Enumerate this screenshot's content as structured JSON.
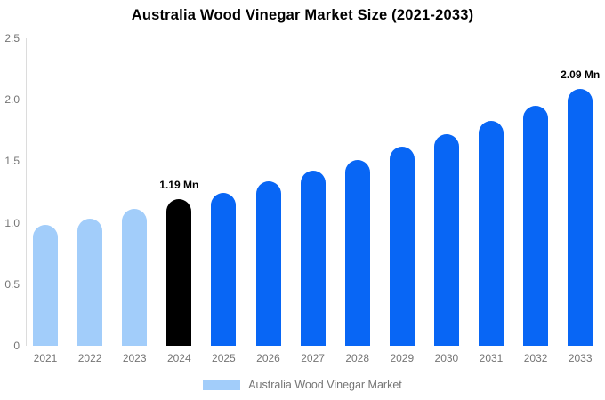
{
  "title": "Australia Wood Vinegar Market Size (2021-2033)",
  "chart_data": {
    "type": "bar",
    "title": "Australia Wood Vinegar Market Size (2021-2033)",
    "categories": [
      "2021",
      "2022",
      "2023",
      "2024",
      "2025",
      "2026",
      "2027",
      "2028",
      "2029",
      "2030",
      "2031",
      "2032",
      "2033"
    ],
    "values": [
      0.98,
      1.03,
      1.11,
      1.19,
      1.24,
      1.34,
      1.42,
      1.51,
      1.62,
      1.72,
      1.83,
      1.95,
      2.09
    ],
    "series_name": "Australia Wood Vinegar Market",
    "xlabel": "",
    "ylabel": "",
    "ylim": [
      0,
      2.5
    ],
    "yticks": [
      "0",
      "0.5",
      "1.0",
      "1.5",
      "2.0",
      "2.5"
    ],
    "grid": false,
    "bar_colors": [
      "#a2cdfa",
      "#a2cdfa",
      "#a2cdfa",
      "#000000",
      "#0866f5",
      "#0866f5",
      "#0866f5",
      "#0866f5",
      "#0866f5",
      "#0866f5",
      "#0866f5",
      "#0866f5",
      "#0866f5"
    ],
    "annotations": [
      {
        "category": "2024",
        "text": "1.19 Mn"
      },
      {
        "category": "2033",
        "text": "2.09 Mn"
      }
    ],
    "legend": {
      "label": "Australia Wood Vinegar Market",
      "position": "bottom",
      "swatch_color": "#a2cdfa"
    }
  },
  "colors": {
    "historical_bar": "#a2cdfa",
    "highlight_bar": "#000000",
    "forecast_bar": "#0866f5",
    "axis_line": "#dcdcdc",
    "tick_text": "#757575",
    "annotation_text": "#000000",
    "background": "#ffffff"
  }
}
